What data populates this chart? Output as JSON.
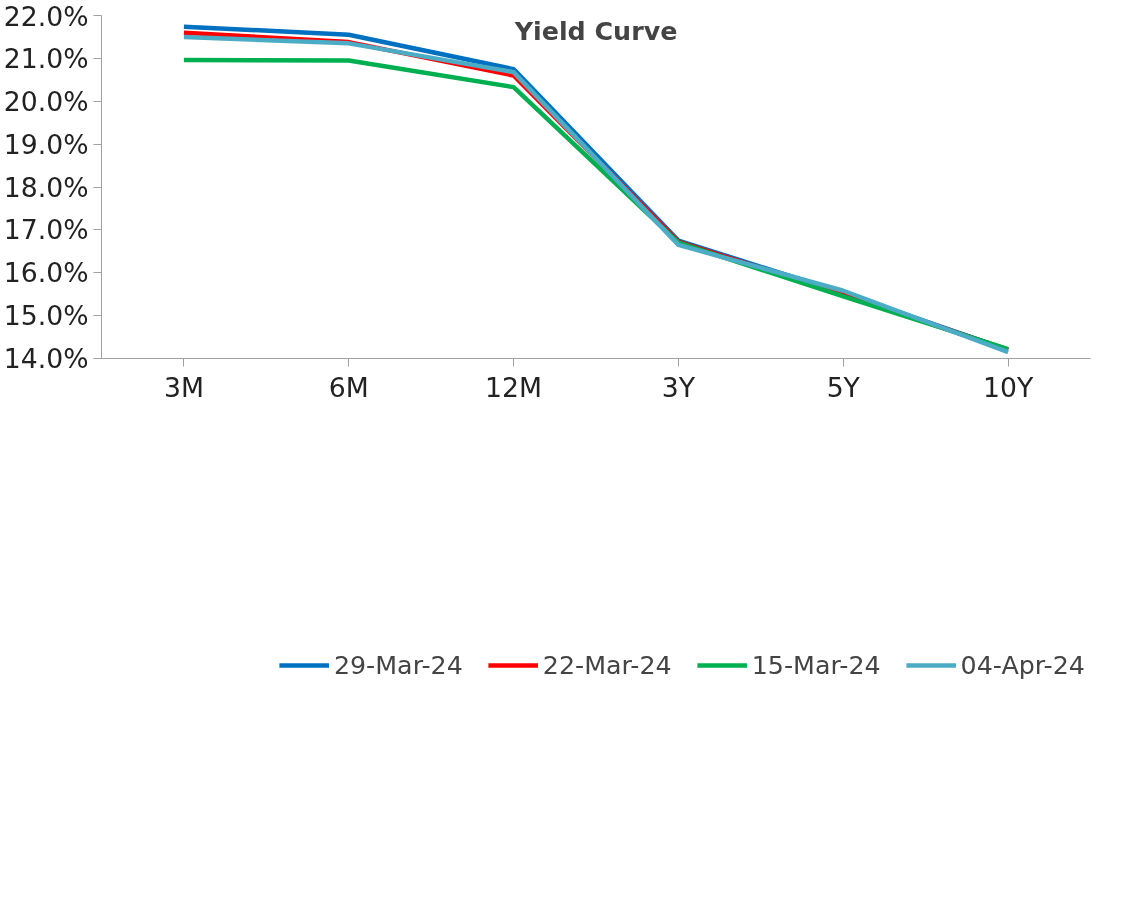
{
  "chart_data": {
    "type": "line",
    "title": "Yield Curve",
    "categories": [
      "3M",
      "6M",
      "12M",
      "3Y",
      "5Y",
      "10Y"
    ],
    "series": [
      {
        "name": "29-Mar-24",
        "color": "#0070c0",
        "values": [
          21.74,
          21.55,
          20.75,
          16.75,
          15.53,
          14.2
        ]
      },
      {
        "name": "22-Mar-24",
        "color": "#ff0000",
        "values": [
          21.6,
          21.38,
          20.6,
          16.72,
          15.5,
          14.2
        ]
      },
      {
        "name": "15-Mar-24",
        "color": "#00b050",
        "values": [
          20.96,
          20.95,
          20.33,
          16.7,
          15.45,
          14.22
        ]
      },
      {
        "name": "04-Apr-24",
        "color": "#4bacc6",
        "values": [
          21.5,
          21.35,
          20.68,
          16.65,
          15.58,
          14.15
        ]
      }
    ],
    "ylim": [
      14,
      22
    ],
    "yticks": [
      {
        "value": 14,
        "label": "14.0%"
      },
      {
        "value": 15,
        "label": "15.0%"
      },
      {
        "value": 16,
        "label": "16.0%"
      },
      {
        "value": 17,
        "label": "17.0%"
      },
      {
        "value": 18,
        "label": "18.0%"
      },
      {
        "value": 19,
        "label": "19.0%"
      },
      {
        "value": 20,
        "label": "20.0%"
      },
      {
        "value": 21,
        "label": "21.0%"
      },
      {
        "value": 22,
        "label": "22.0%"
      }
    ],
    "grid": false,
    "legend": "bottom",
    "marker": "none",
    "line_style": "solid"
  }
}
